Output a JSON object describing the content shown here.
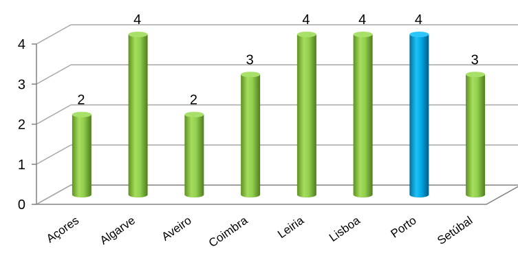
{
  "chart_data": {
    "type": "bar",
    "style": "3d-cylinder",
    "categories": [
      "Açores",
      "Algarve",
      "Aveiro",
      "Coimbra",
      "Leiria",
      "Lisboa",
      "Porto",
      "Setúbal"
    ],
    "values": [
      2,
      4,
      2,
      3,
      4,
      4,
      4,
      3
    ],
    "data_labels": [
      "2",
      "4",
      "2",
      "3",
      "4",
      "4",
      "4",
      "3"
    ],
    "highlight_index": 6,
    "ylim": [
      0,
      4
    ],
    "yticks": [
      "0",
      "1",
      "2",
      "3",
      "4"
    ],
    "grid": true,
    "legend": "none",
    "title": "",
    "xlabel": "",
    "ylabel": "",
    "colors": {
      "bar": "#92d050",
      "bar_highlight": "#00a9e6",
      "grid": "#a6a6a6",
      "floor": "#808080"
    }
  }
}
